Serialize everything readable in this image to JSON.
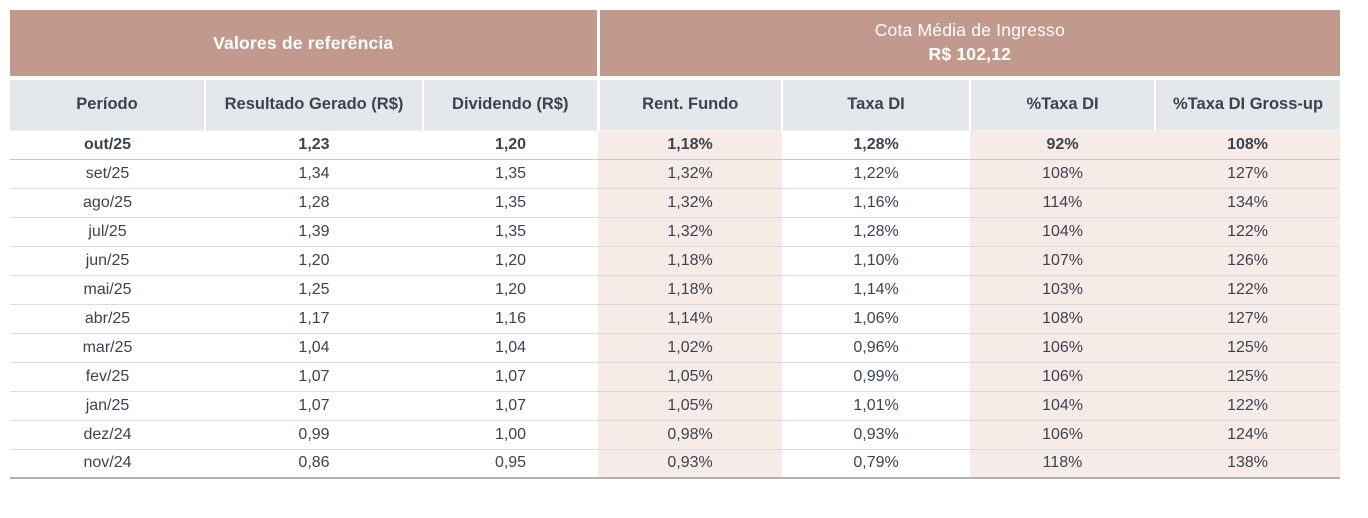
{
  "table": {
    "group_headers": {
      "left": {
        "label": "Valores de referência"
      },
      "right": {
        "line1": "Cota Média de Ingresso",
        "line2": "R$ 102,12"
      }
    },
    "columns": [
      "Período",
      "Resultado Gerado (R$)",
      "Dividendo (R$)",
      "Rent. Fundo",
      "Taxa DI",
      "%Taxa DI",
      "%Taxa DI Gross-up"
    ],
    "row_keys": [
      "periodo",
      "resultado-gerado",
      "dividendo",
      "rent-fundo",
      "taxa-di",
      "pct-taxa-di",
      "pct-taxa-di-gross-up"
    ],
    "rows": [
      {
        "bold": true,
        "values": [
          "out/25",
          "1,23",
          "1,20",
          "1,18%",
          "1,28%",
          "92%",
          "108%"
        ]
      },
      {
        "bold": false,
        "values": [
          "set/25",
          "1,34",
          "1,35",
          "1,32%",
          "1,22%",
          "108%",
          "127%"
        ]
      },
      {
        "bold": false,
        "values": [
          "ago/25",
          "1,28",
          "1,35",
          "1,32%",
          "1,16%",
          "114%",
          "134%"
        ]
      },
      {
        "bold": false,
        "values": [
          "jul/25",
          "1,39",
          "1,35",
          "1,32%",
          "1,28%",
          "104%",
          "122%"
        ]
      },
      {
        "bold": false,
        "values": [
          "jun/25",
          "1,20",
          "1,20",
          "1,18%",
          "1,10%",
          "107%",
          "126%"
        ]
      },
      {
        "bold": false,
        "values": [
          "mai/25",
          "1,25",
          "1,20",
          "1,18%",
          "1,14%",
          "103%",
          "122%"
        ]
      },
      {
        "bold": false,
        "values": [
          "abr/25",
          "1,17",
          "1,16",
          "1,14%",
          "1,06%",
          "108%",
          "127%"
        ]
      },
      {
        "bold": false,
        "values": [
          "mar/25",
          "1,04",
          "1,04",
          "1,02%",
          "0,96%",
          "106%",
          "125%"
        ]
      },
      {
        "bold": false,
        "values": [
          "fev/25",
          "1,07",
          "1,07",
          "1,05%",
          "0,99%",
          "106%",
          "125%"
        ]
      },
      {
        "bold": false,
        "values": [
          "jan/25",
          "1,07",
          "1,07",
          "1,05%",
          "1,01%",
          "104%",
          "122%"
        ]
      },
      {
        "bold": false,
        "values": [
          "dez/24",
          "0,99",
          "1,00",
          "0,98%",
          "0,93%",
          "106%",
          "124%"
        ]
      },
      {
        "bold": false,
        "values": [
          "nov/24",
          "0,86",
          "0,95",
          "0,93%",
          "0,79%",
          "118%",
          "138%"
        ]
      }
    ]
  },
  "colors": {
    "header_bg": "#c29a8d",
    "subheader_bg": "#e5e8ea",
    "highlight_bg": "#f6ebe6",
    "text_color": "#3b4353",
    "row_border": "#dadde0",
    "bold_row_border": "#c6cacd",
    "bottom_border": "#b0b4b8"
  }
}
